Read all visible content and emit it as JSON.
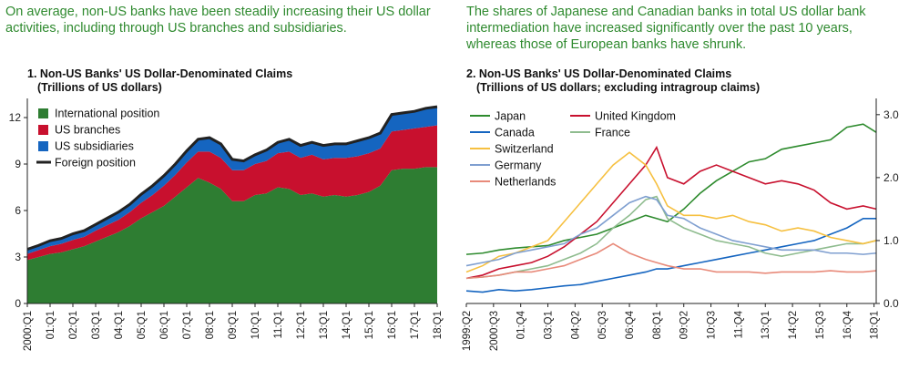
{
  "captions": {
    "left": "On average, non-US banks have been steadily increasing their US dollar activities, including through US branches and subsidiaries.",
    "right": "The shares of Japanese and Canadian banks in total US dollar bank intermediation have increased significantly over the past 10 years, whereas those of European banks have shrunk."
  },
  "chart_data": [
    {
      "type": "area",
      "title": "1. Non-US Banks' US Dollar-Denominated Claims",
      "subtitle": "(Trillions of US dollars)",
      "ylim": [
        0,
        13
      ],
      "yticks": [
        0,
        3,
        6,
        9,
        12
      ],
      "xticks": [
        "2000:Q1",
        "01:Q1",
        "02:Q1",
        "03:Q1",
        "04:Q1",
        "05:Q1",
        "06:Q1",
        "07:Q1",
        "08:Q1",
        "09:Q1",
        "10:Q1",
        "11:Q1",
        "12:Q1",
        "13:Q1",
        "14:Q1",
        "15:Q1",
        "16:Q1",
        "17:Q1",
        "18:Q1"
      ],
      "legend_position": "top-left",
      "x": [
        2000,
        2000.5,
        2001,
        2001.5,
        2002,
        2002.5,
        2003,
        2003.5,
        2004,
        2004.5,
        2005,
        2005.5,
        2006,
        2006.5,
        2007,
        2007.5,
        2008,
        2008.5,
        2009,
        2009.5,
        2010,
        2010.5,
        2011,
        2011.5,
        2012,
        2012.5,
        2013,
        2013.5,
        2014,
        2014.5,
        2015,
        2015.5,
        2016,
        2016.5,
        2017,
        2017.5,
        2018
      ],
      "series": [
        {
          "name": "International position",
          "color": "#2e7d32",
          "values": [
            2.8,
            3.0,
            3.2,
            3.3,
            3.5,
            3.7,
            4.0,
            4.3,
            4.6,
            5.0,
            5.5,
            5.9,
            6.3,
            6.9,
            7.5,
            8.1,
            7.8,
            7.4,
            6.6,
            6.6,
            7.0,
            7.1,
            7.5,
            7.4,
            7.0,
            7.1,
            6.9,
            7.0,
            6.9,
            7.0,
            7.2,
            7.6,
            8.6,
            8.7,
            8.7,
            8.8,
            8.8
          ]
        },
        {
          "name": "US branches",
          "color": "#c8102e",
          "values": [
            0.4,
            0.45,
            0.5,
            0.55,
            0.6,
            0.6,
            0.7,
            0.75,
            0.8,
            0.9,
            1.0,
            1.1,
            1.3,
            1.4,
            1.6,
            1.7,
            2.0,
            2.0,
            2.0,
            2.0,
            2.0,
            2.1,
            2.2,
            2.4,
            2.4,
            2.5,
            2.4,
            2.4,
            2.5,
            2.5,
            2.5,
            2.4,
            2.5,
            2.5,
            2.6,
            2.6,
            2.7
          ]
        },
        {
          "name": "US subsidiaries",
          "color": "#1565c0",
          "values": [
            0.3,
            0.3,
            0.35,
            0.35,
            0.4,
            0.4,
            0.4,
            0.45,
            0.5,
            0.5,
            0.55,
            0.6,
            0.65,
            0.7,
            0.75,
            0.8,
            0.9,
            0.9,
            0.7,
            0.6,
            0.6,
            0.7,
            0.7,
            0.8,
            0.8,
            0.8,
            0.9,
            0.9,
            0.9,
            1.0,
            1.0,
            1.0,
            1.1,
            1.1,
            1.1,
            1.2,
            1.2
          ]
        },
        {
          "name": "Foreign position",
          "color": "#222222",
          "type": "line",
          "values": [
            3.5,
            3.75,
            4.05,
            4.2,
            4.5,
            4.7,
            5.1,
            5.5,
            5.9,
            6.4,
            7.05,
            7.6,
            8.25,
            9.0,
            9.85,
            10.6,
            10.7,
            10.3,
            9.3,
            9.2,
            9.6,
            9.9,
            10.4,
            10.6,
            10.2,
            10.4,
            10.2,
            10.3,
            10.3,
            10.5,
            10.7,
            11.0,
            12.2,
            12.3,
            12.4,
            12.6,
            12.7
          ]
        }
      ]
    },
    {
      "type": "line",
      "title": "2. Non-US Banks' US Dollar-Denominated Claims",
      "subtitle": "(Trillions of US dollars; excluding intragroup claims)",
      "ylim": [
        0,
        3.2
      ],
      "yticks": [
        0.0,
        1.0,
        2.0,
        3.0
      ],
      "ytick_labels": [
        "0.0",
        "1.0",
        "2.0",
        "3.0"
      ],
      "xticks": [
        "1999:Q2",
        "2000:Q3",
        "01:Q4",
        "03:Q1",
        "04:Q2",
        "05:Q3",
        "06:Q4",
        "08:Q1",
        "09:Q2",
        "10:Q3",
        "11:Q4",
        "13:Q1",
        "14:Q2",
        "15:Q3",
        "16:Q4",
        "18:Q1"
      ],
      "legend_position": "top-left",
      "x": [
        1999.25,
        2000,
        2000.75,
        2001.5,
        2002.25,
        2003,
        2003.75,
        2004.5,
        2005.25,
        2006,
        2006.75,
        2007.5,
        2008,
        2008.5,
        2009.25,
        2010,
        2010.75,
        2011.5,
        2012.25,
        2013,
        2013.75,
        2014.5,
        2015.25,
        2016,
        2016.75,
        2017.5,
        2018.1
      ],
      "series": [
        {
          "name": "Japan",
          "color": "#2e8b2e",
          "values": [
            0.78,
            0.8,
            0.85,
            0.88,
            0.9,
            0.92,
            1.0,
            1.05,
            1.1,
            1.2,
            1.3,
            1.4,
            1.35,
            1.3,
            1.5,
            1.75,
            1.95,
            2.1,
            2.25,
            2.3,
            2.45,
            2.5,
            2.55,
            2.6,
            2.8,
            2.85,
            2.72
          ]
        },
        {
          "name": "United Kingdom",
          "color": "#c8102e",
          "values": [
            0.4,
            0.45,
            0.55,
            0.6,
            0.65,
            0.75,
            0.9,
            1.1,
            1.3,
            1.6,
            1.9,
            2.2,
            2.48,
            2.0,
            1.9,
            2.1,
            2.2,
            2.1,
            2.0,
            1.9,
            1.95,
            1.9,
            1.8,
            1.6,
            1.5,
            1.55,
            1.5
          ]
        },
        {
          "name": "Canada",
          "color": "#1565c0",
          "values": [
            0.2,
            0.18,
            0.22,
            0.2,
            0.22,
            0.25,
            0.28,
            0.3,
            0.35,
            0.4,
            0.45,
            0.5,
            0.55,
            0.55,
            0.6,
            0.65,
            0.7,
            0.75,
            0.8,
            0.85,
            0.9,
            0.95,
            1.0,
            1.1,
            1.2,
            1.35,
            1.35
          ]
        },
        {
          "name": "France",
          "color": "#8fbc8f",
          "values": [
            0.4,
            0.42,
            0.45,
            0.5,
            0.55,
            0.6,
            0.7,
            0.8,
            0.95,
            1.2,
            1.4,
            1.65,
            1.7,
            1.35,
            1.2,
            1.1,
            1.0,
            0.95,
            0.9,
            0.8,
            0.75,
            0.8,
            0.85,
            0.9,
            0.95,
            0.95,
            1.0
          ]
        },
        {
          "name": "Switzerland",
          "color": "#f6c040",
          "values": [
            0.5,
            0.6,
            0.75,
            0.8,
            0.9,
            1.0,
            1.3,
            1.6,
            1.9,
            2.2,
            2.4,
            2.2,
            1.9,
            1.55,
            1.4,
            1.4,
            1.35,
            1.4,
            1.3,
            1.25,
            1.15,
            1.2,
            1.15,
            1.05,
            1.0,
            0.95,
            1.0
          ]
        },
        {
          "name": "Germany",
          "color": "#7f9fd0",
          "values": [
            0.6,
            0.65,
            0.7,
            0.8,
            0.85,
            0.9,
            0.95,
            1.1,
            1.2,
            1.4,
            1.6,
            1.7,
            1.65,
            1.4,
            1.35,
            1.2,
            1.1,
            1.0,
            0.95,
            0.9,
            0.85,
            0.85,
            0.85,
            0.8,
            0.8,
            0.78,
            0.8
          ]
        },
        {
          "name": "Netherlands",
          "color": "#e88a7a",
          "values": [
            0.4,
            0.42,
            0.45,
            0.5,
            0.5,
            0.55,
            0.6,
            0.7,
            0.8,
            0.95,
            0.8,
            0.7,
            0.65,
            0.6,
            0.55,
            0.55,
            0.5,
            0.5,
            0.5,
            0.48,
            0.5,
            0.5,
            0.5,
            0.52,
            0.5,
            0.5,
            0.52
          ]
        }
      ]
    }
  ]
}
